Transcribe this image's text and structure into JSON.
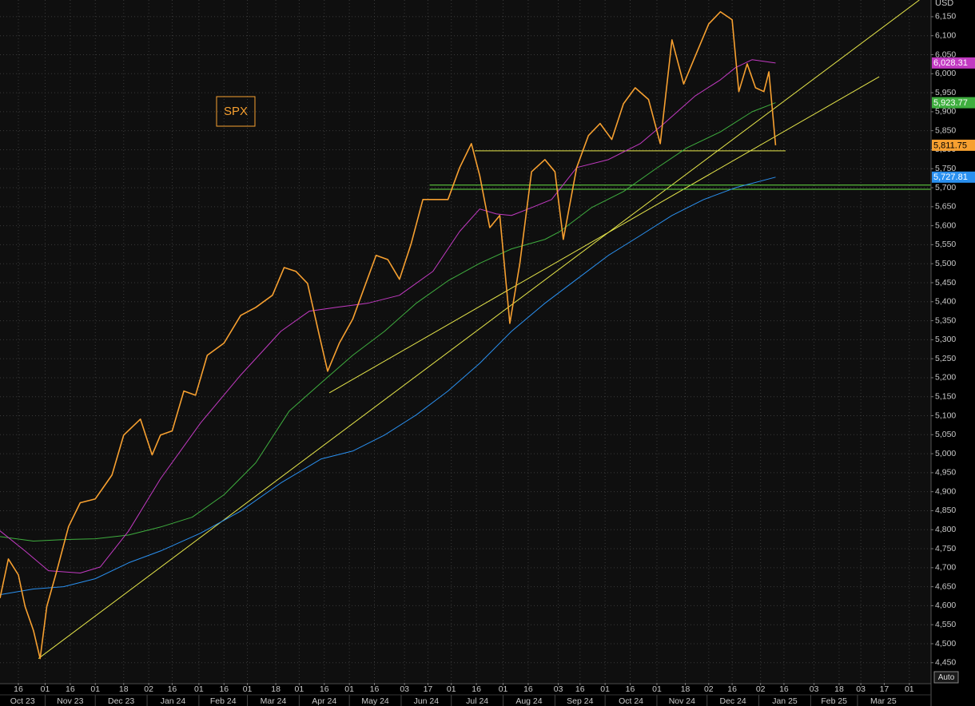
{
  "chart_data": {
    "type": "line",
    "y_unit": "USD",
    "scale_button": "Auto",
    "grid": true,
    "xlim": [
      "2023-10-05",
      "2025-04-14"
    ],
    "ylim": [
      4397,
      6194
    ],
    "yticks": [
      {
        "value": 4450,
        "label": "4,450"
      },
      {
        "value": 4500,
        "label": "4,500"
      },
      {
        "value": 4550,
        "label": "4,550"
      },
      {
        "value": 4600,
        "label": "4,600"
      },
      {
        "value": 4650,
        "label": "4,650"
      },
      {
        "value": 4700,
        "label": "4,700"
      },
      {
        "value": 4750,
        "label": "4,750"
      },
      {
        "value": 4800,
        "label": "4,800"
      },
      {
        "value": 4850,
        "label": "4,850"
      },
      {
        "value": 4900,
        "label": "4,900"
      },
      {
        "value": 4950,
        "label": "4,950"
      },
      {
        "value": 5000,
        "label": "5,000"
      },
      {
        "value": 5050,
        "label": "5,050"
      },
      {
        "value": 5100,
        "label": "5,100"
      },
      {
        "value": 5150,
        "label": "5,150"
      },
      {
        "value": 5200,
        "label": "5,200"
      },
      {
        "value": 5250,
        "label": "5,250"
      },
      {
        "value": 5300,
        "label": "5,300"
      },
      {
        "value": 5350,
        "label": "5,350"
      },
      {
        "value": 5400,
        "label": "5,400"
      },
      {
        "value": 5450,
        "label": "5,450"
      },
      {
        "value": 5500,
        "label": "5,500"
      },
      {
        "value": 5550,
        "label": "5,550"
      },
      {
        "value": 5600,
        "label": "5,600"
      },
      {
        "value": 5650,
        "label": "5,650"
      },
      {
        "value": 5700,
        "label": "5,700"
      },
      {
        "value": 5750,
        "label": "5,750"
      },
      {
        "value": 5800,
        "label": "5,800"
      },
      {
        "value": 5850,
        "label": "5,850"
      },
      {
        "value": 5900,
        "label": "5,900"
      },
      {
        "value": 5950,
        "label": "5,950"
      },
      {
        "value": 6000,
        "label": "6,000"
      },
      {
        "value": 6050,
        "label": "6,050"
      },
      {
        "value": 6100,
        "label": "6,100"
      },
      {
        "value": 6150,
        "label": "6,150"
      }
    ],
    "xticks": [
      {
        "value": "2023-10-16",
        "label": "16"
      },
      {
        "value": "2023-11-01",
        "label": "01"
      },
      {
        "value": "2023-11-16",
        "label": "16"
      },
      {
        "value": "2023-12-01",
        "label": "01"
      },
      {
        "value": "2023-12-18",
        "label": "18"
      },
      {
        "value": "2024-01-02",
        "label": "02"
      },
      {
        "value": "2024-01-16",
        "label": "16"
      },
      {
        "value": "2024-02-01",
        "label": "01"
      },
      {
        "value": "2024-02-16",
        "label": "16"
      },
      {
        "value": "2024-03-01",
        "label": "01"
      },
      {
        "value": "2024-03-18",
        "label": "18"
      },
      {
        "value": "2024-04-01",
        "label": "01"
      },
      {
        "value": "2024-04-16",
        "label": "16"
      },
      {
        "value": "2024-05-01",
        "label": "01"
      },
      {
        "value": "2024-05-16",
        "label": "16"
      },
      {
        "value": "2024-06-03",
        "label": "03"
      },
      {
        "value": "2024-06-17",
        "label": "17"
      },
      {
        "value": "2024-07-01",
        "label": "01"
      },
      {
        "value": "2024-07-16",
        "label": "16"
      },
      {
        "value": "2024-08-01",
        "label": "01"
      },
      {
        "value": "2024-08-16",
        "label": "16"
      },
      {
        "value": "2024-09-03",
        "label": "03"
      },
      {
        "value": "2024-09-16",
        "label": "16"
      },
      {
        "value": "2024-10-01",
        "label": "01"
      },
      {
        "value": "2024-10-16",
        "label": "16"
      },
      {
        "value": "2024-11-01",
        "label": "01"
      },
      {
        "value": "2024-11-18",
        "label": "18"
      },
      {
        "value": "2024-12-02",
        "label": "02"
      },
      {
        "value": "2024-12-16",
        "label": "16"
      },
      {
        "value": "2025-01-02",
        "label": "02"
      },
      {
        "value": "2025-01-16",
        "label": "16"
      },
      {
        "value": "2025-02-03",
        "label": "03"
      },
      {
        "value": "2025-02-18",
        "label": "18"
      },
      {
        "value": "2025-03-03",
        "label": "03"
      },
      {
        "value": "2025-03-17",
        "label": "17"
      },
      {
        "value": "2025-04-01",
        "label": "01"
      }
    ],
    "xmonths": [
      {
        "value": "2023-10",
        "label": "Oct 23"
      },
      {
        "value": "2023-11",
        "label": "Nov 23"
      },
      {
        "value": "2023-12",
        "label": "Dec 23"
      },
      {
        "value": "2024-01",
        "label": "Jan 24"
      },
      {
        "value": "2024-02",
        "label": "Feb 24"
      },
      {
        "value": "2024-03",
        "label": "Mar 24"
      },
      {
        "value": "2024-04",
        "label": "Apr 24"
      },
      {
        "value": "2024-05",
        "label": "May 24"
      },
      {
        "value": "2024-06",
        "label": "Jun 24"
      },
      {
        "value": "2024-07",
        "label": "Jul 24"
      },
      {
        "value": "2024-08",
        "label": "Aug 24"
      },
      {
        "value": "2024-09",
        "label": "Sep 24"
      },
      {
        "value": "2024-10",
        "label": "Oct 24"
      },
      {
        "value": "2024-11",
        "label": "Nov 24"
      },
      {
        "value": "2024-12",
        "label": "Dec 24"
      },
      {
        "value": "2025-01",
        "label": "Jan 25"
      },
      {
        "value": "2025-02",
        "label": "Feb 25"
      },
      {
        "value": "2025-03",
        "label": "Mar 25"
      }
    ],
    "series": [
      {
        "name": "SPX",
        "color": "#f7a030",
        "x": [
          "2023-10-05",
          "2023-10-10",
          "2023-10-16",
          "2023-10-20",
          "2023-10-25",
          "2023-10-29",
          "2023-11-02",
          "2023-11-08",
          "2023-11-15",
          "2023-11-22",
          "2023-12-01",
          "2023-12-11",
          "2023-12-18",
          "2023-12-28",
          "2024-01-04",
          "2024-01-09",
          "2024-01-16",
          "2024-01-23",
          "2024-01-30",
          "2024-02-06",
          "2024-02-16",
          "2024-02-26",
          "2024-03-06",
          "2024-03-16",
          "2024-03-23",
          "2024-03-30",
          "2024-04-06",
          "2024-04-13",
          "2024-04-18",
          "2024-04-25",
          "2024-05-03",
          "2024-05-10",
          "2024-05-17",
          "2024-05-24",
          "2024-05-31",
          "2024-06-07",
          "2024-06-14",
          "2024-06-21",
          "2024-06-29",
          "2024-07-06",
          "2024-07-13",
          "2024-07-18",
          "2024-07-24",
          "2024-07-30",
          "2024-08-05",
          "2024-08-11",
          "2024-08-18",
          "2024-08-26",
          "2024-09-01",
          "2024-09-06",
          "2024-09-14",
          "2024-09-21",
          "2024-09-28",
          "2024-10-05",
          "2024-10-12",
          "2024-10-19",
          "2024-10-27",
          "2024-11-03",
          "2024-11-10",
          "2024-11-17",
          "2024-11-24",
          "2024-12-02",
          "2024-12-09",
          "2024-12-16",
          "2024-12-20",
          "2024-12-25",
          "2024-12-30",
          "2025-01-04",
          "2025-01-07",
          "2025-01-11"
        ],
        "values": [
          4620,
          4723,
          4681,
          4598,
          4535,
          4461,
          4598,
          4692,
          4808,
          4871,
          4881,
          4944,
          5049,
          5091,
          4997,
          5049,
          5060,
          5165,
          5154,
          5259,
          5291,
          5364,
          5385,
          5417,
          5490,
          5480,
          5448,
          5312,
          5217,
          5291,
          5354,
          5438,
          5522,
          5511,
          5459,
          5553,
          5669,
          5669,
          5669,
          5753,
          5816,
          5732,
          5595,
          5627,
          5343,
          5501,
          5742,
          5774,
          5742,
          5564,
          5753,
          5837,
          5869,
          5827,
          5921,
          5963,
          5932,
          5816,
          6089,
          5973,
          6047,
          6131,
          6163,
          6142,
          5953,
          6026,
          5963,
          5953,
          6005,
          5811.75
        ],
        "tag": {
          "value": 5811.75,
          "label": "5,811.75"
        }
      },
      {
        "color": "#c23ac2",
        "x": [
          "2023-10-05",
          "2023-10-20",
          "2023-11-03",
          "2023-11-22",
          "2023-12-04",
          "2023-12-21",
          "2024-01-09",
          "2024-02-02",
          "2024-02-26",
          "2024-03-21",
          "2024-04-07",
          "2024-04-23",
          "2024-05-12",
          "2024-05-31",
          "2024-06-20",
          "2024-07-06",
          "2024-07-18",
          "2024-07-28",
          "2024-08-06",
          "2024-08-16",
          "2024-08-30",
          "2024-09-14",
          "2024-10-03",
          "2024-10-22",
          "2024-11-05",
          "2024-11-24",
          "2024-12-09",
          "2024-12-18",
          "2024-12-28",
          "2025-01-11"
        ],
        "values": [
          4797,
          4744,
          4692,
          4686,
          4702,
          4797,
          4934,
          5081,
          5207,
          5322,
          5375,
          5385,
          5396,
          5417,
          5480,
          5585,
          5644,
          5631,
          5627,
          5644,
          5669,
          5753,
          5774,
          5816,
          5868,
          5942,
          5984,
          6016,
          6037,
          6028.31
        ],
        "tag": {
          "value": 6028.31,
          "label": "6,028.31"
        }
      },
      {
        "color": "#3fae3f",
        "x": [
          "2023-10-05",
          "2023-10-25",
          "2023-11-12",
          "2023-12-01",
          "2023-12-21",
          "2024-01-09",
          "2024-01-28",
          "2024-02-16",
          "2024-03-06",
          "2024-03-26",
          "2024-04-14",
          "2024-05-03",
          "2024-05-22",
          "2024-06-10",
          "2024-06-29",
          "2024-07-18",
          "2024-08-06",
          "2024-08-26",
          "2024-09-04",
          "2024-09-23",
          "2024-10-12",
          "2024-10-31",
          "2024-11-19",
          "2024-12-09",
          "2024-12-28",
          "2025-01-11"
        ],
        "values": [
          4782,
          4770,
          4774,
          4776,
          4786,
          4807,
          4833,
          4892,
          4976,
          5112,
          5186,
          5259,
          5322,
          5396,
          5455,
          5501,
          5539,
          5564,
          5585,
          5648,
          5690,
          5749,
          5805,
          5847,
          5900,
          5923.77
        ],
        "tag": {
          "value": 5923.77,
          "label": "5,923.77"
        }
      },
      {
        "color": "#2a90f0",
        "x": [
          "2023-10-05",
          "2023-10-25",
          "2023-11-12",
          "2023-12-01",
          "2023-12-21",
          "2024-01-09",
          "2024-02-02",
          "2024-02-26",
          "2024-03-21",
          "2024-04-14",
          "2024-05-03",
          "2024-05-22",
          "2024-06-10",
          "2024-06-29",
          "2024-07-18",
          "2024-08-06",
          "2024-08-26",
          "2024-09-14",
          "2024-10-03",
          "2024-10-22",
          "2024-11-10",
          "2024-11-29",
          "2024-12-18",
          "2025-01-11"
        ],
        "values": [
          4629,
          4644,
          4650,
          4671,
          4713,
          4744,
          4791,
          4849,
          4923,
          4986,
          5007,
          5049,
          5102,
          5165,
          5238,
          5322,
          5396,
          5459,
          5522,
          5574,
          5627,
          5669,
          5700,
          5727.81
        ],
        "tag": {
          "value": 5727.81,
          "label": "5,727.81"
        }
      }
    ],
    "lines": [
      {
        "color": "#e6e64a",
        "x": [
          "2023-10-28",
          "2025-04-07"
        ],
        "values": [
          4461,
          6194
        ]
      },
      {
        "color": "#e6e64a",
        "x": [
          "2024-04-19",
          "2025-03-14"
        ],
        "values": [
          5160,
          5992
        ]
      },
      {
        "color": "#e6e64a",
        "x": [
          "2024-07-15",
          "2025-01-17"
        ],
        "values": [
          5797,
          5797
        ]
      },
      {
        "color": "#66dd44",
        "x": [
          "2024-06-18",
          "2025-04-14"
        ],
        "values": [
          5707,
          5707
        ]
      },
      {
        "color": "#66dd44",
        "x": [
          "2024-06-18",
          "2025-04-14"
        ],
        "values": [
          5696,
          5696
        ]
      }
    ]
  }
}
